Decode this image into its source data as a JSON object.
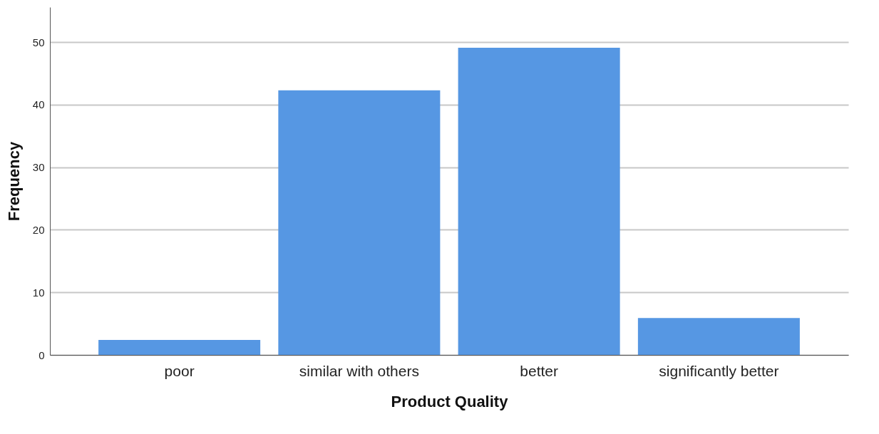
{
  "chart_data": {
    "type": "bar",
    "xlabel": "Product Quality",
    "ylabel": "Frequency",
    "categories": [
      "poor",
      "similar with others",
      "better",
      "significantly better"
    ],
    "values": [
      2.4,
      42.3,
      49.1,
      5.9
    ],
    "color": "#5697e3",
    "ylim": [
      0,
      55.6
    ],
    "yticks": [
      0,
      10,
      20,
      30,
      40,
      50
    ],
    "grid": "y"
  }
}
